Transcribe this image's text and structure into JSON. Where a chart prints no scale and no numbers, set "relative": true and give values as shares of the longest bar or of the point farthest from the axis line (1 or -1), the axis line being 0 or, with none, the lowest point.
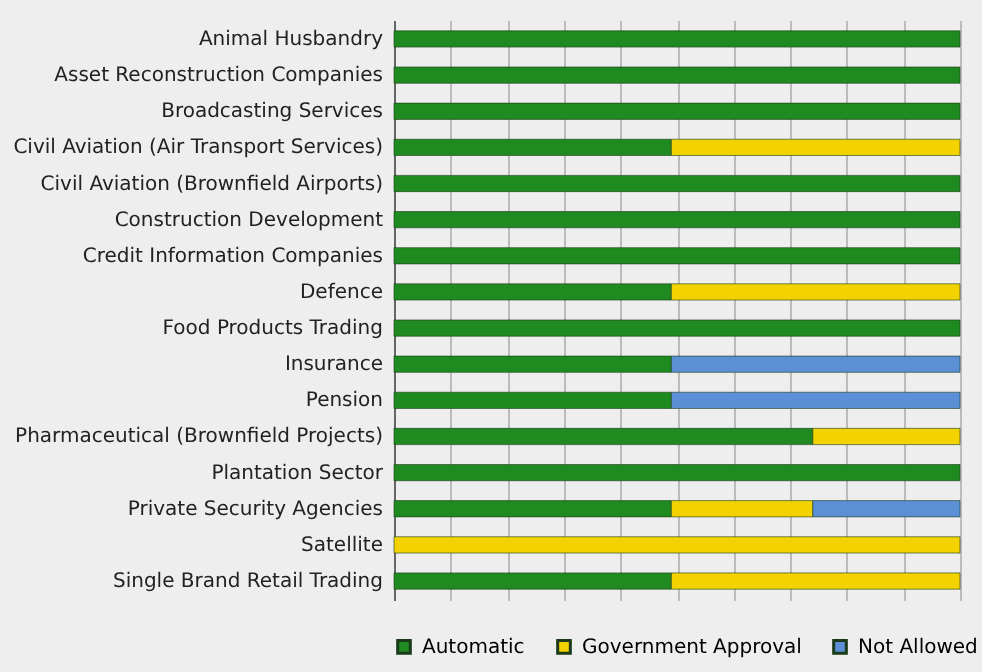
{
  "chart_data": {
    "type": "bar",
    "orientation": "horizontal",
    "stacked": true,
    "relative": true,
    "grid": "x",
    "legend": "bottom",
    "categories": [
      "Animal Husbandry",
      "Asset Reconstruction Companies",
      "Broadcasting Services",
      "Civil Aviation (Air Transport Services)",
      "Civil Aviation (Brownfield Airports)",
      "Construction Development",
      "Credit Information Companies",
      "Defence",
      "Food Products Trading",
      "Insurance",
      "Pension",
      "Pharmaceutical (Brownfield Projects)",
      "Plantation Sector",
      "Private Security Agencies",
      "Satellite",
      "Single Brand Retail Trading"
    ],
    "series": [
      {
        "name": "Automatic",
        "color": "#1f8a1f",
        "values": [
          1,
          1,
          1,
          0.49,
          1,
          1,
          1,
          0.49,
          1,
          0.49,
          0.49,
          0.74,
          1,
          0.49,
          null,
          0.49
        ]
      },
      {
        "name": "Government Approval",
        "color": "#f2d200",
        "values": [
          null,
          null,
          null,
          0.51,
          null,
          null,
          null,
          0.51,
          null,
          null,
          null,
          0.26,
          null,
          0.25,
          1,
          0.51
        ]
      },
      {
        "name": "Not Allowed",
        "color": "#5b8fd6",
        "values": [
          null,
          null,
          null,
          null,
          null,
          null,
          null,
          null,
          null,
          0.51,
          0.51,
          null,
          null,
          0.26,
          null,
          null
        ]
      }
    ]
  }
}
